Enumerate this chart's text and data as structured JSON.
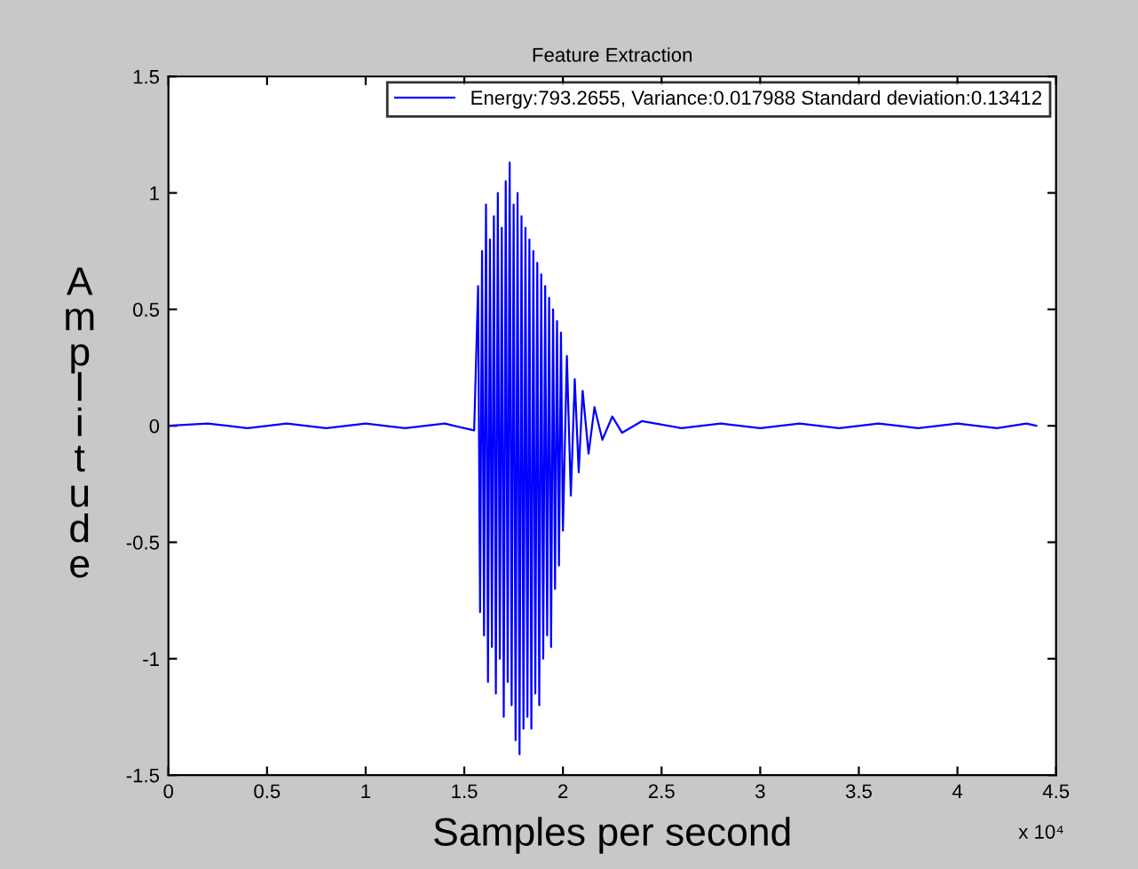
{
  "chart_data": {
    "type": "line",
    "title": "Feature Extraction",
    "xlabel": "Samples per second",
    "ylabel": "Amplitude",
    "annotations": [
      "x 10⁴"
    ],
    "xlim": [
      0,
      4.5
    ],
    "xticks": [
      0,
      0.5,
      1,
      1.5,
      2,
      2.5,
      3,
      3.5,
      4,
      4.5
    ],
    "ylim": [
      -1.5,
      1.5
    ],
    "yticks": [
      -1.5,
      -1,
      -0.5,
      0,
      0.5,
      1,
      1.5
    ],
    "grid": false,
    "legend": "top right",
    "marker": "none",
    "line_style": "solid",
    "series": [
      {
        "name": "Energy:793.2655, Variance:0.017988 Standard deviation:0.13412",
        "color": "#0000ff",
        "x": [
          0,
          0.2,
          0.4,
          0.6,
          0.8,
          1.0,
          1.2,
          1.4,
          1.55,
          1.57,
          1.58,
          1.59,
          1.6,
          1.61,
          1.62,
          1.63,
          1.64,
          1.65,
          1.66,
          1.67,
          1.68,
          1.69,
          1.7,
          1.71,
          1.72,
          1.73,
          1.74,
          1.75,
          1.76,
          1.77,
          1.78,
          1.79,
          1.8,
          1.81,
          1.82,
          1.83,
          1.84,
          1.85,
          1.86,
          1.87,
          1.88,
          1.89,
          1.9,
          1.91,
          1.92,
          1.93,
          1.94,
          1.95,
          1.96,
          1.97,
          1.98,
          1.99,
          2.0,
          2.02,
          2.04,
          2.06,
          2.08,
          2.1,
          2.13,
          2.16,
          2.2,
          2.25,
          2.3,
          2.4,
          2.6,
          2.8,
          3.0,
          3.2,
          3.4,
          3.6,
          3.8,
          4.0,
          4.2,
          4.35,
          4.4
        ],
        "values": [
          0,
          0.01,
          -0.01,
          0.01,
          -0.01,
          0.01,
          -0.01,
          0.01,
          -0.02,
          0.6,
          -0.8,
          0.75,
          -0.9,
          0.95,
          -1.1,
          0.8,
          -0.95,
          0.9,
          -1.15,
          1.0,
          -1.0,
          0.85,
          -1.25,
          1.05,
          -1.1,
          1.13,
          -1.2,
          0.95,
          -1.35,
          1.0,
          -1.41,
          0.9,
          -1.3,
          0.85,
          -1.25,
          0.8,
          -1.3,
          0.75,
          -1.15,
          0.7,
          -1.2,
          0.65,
          -1.0,
          0.6,
          -0.9,
          0.55,
          -0.95,
          0.5,
          -0.7,
          0.45,
          -0.6,
          0.4,
          -0.45,
          0.3,
          -0.3,
          0.2,
          -0.2,
          0.15,
          -0.12,
          0.08,
          -0.06,
          0.04,
          -0.03,
          0.02,
          -0.01,
          0.01,
          -0.01,
          0.01,
          -0.01,
          0.01,
          -0.01,
          0.01,
          -0.01,
          0.01,
          0
        ]
      }
    ]
  }
}
